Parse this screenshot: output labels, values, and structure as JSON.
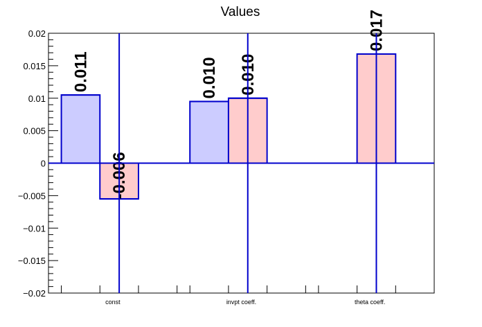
{
  "chart_data": {
    "type": "bar",
    "title": "Values",
    "xlabel": "",
    "ylabel": "",
    "categories": [
      "const",
      "invpt coeff.",
      "theta coeff."
    ],
    "series": [
      {
        "values": [
          0.0105,
          0.0095,
          null
        ],
        "labels": [
          "0.011",
          "0.010",
          ""
        ],
        "color": "#ccccff"
      },
      {
        "values": [
          -0.0055,
          0.01,
          0.0168
        ],
        "labels": [
          "-0.006",
          "0.010",
          "0.017"
        ],
        "color": "#ffcccc"
      }
    ],
    "ylim": [
      -0.02,
      0.02
    ],
    "yticks": [
      -0.02,
      -0.015,
      -0.01,
      -0.005,
      0,
      0.005,
      0.01,
      0.015,
      0.02
    ],
    "ytick_labels": [
      "−0.02",
      "−0.015",
      "−0.01",
      "−0.005",
      "0",
      "0.005",
      "0.01",
      "0.015",
      "0.02"
    ],
    "grid": false,
    "colors": {
      "bar_edge": "#0000cc",
      "axis": "#000000"
    }
  }
}
